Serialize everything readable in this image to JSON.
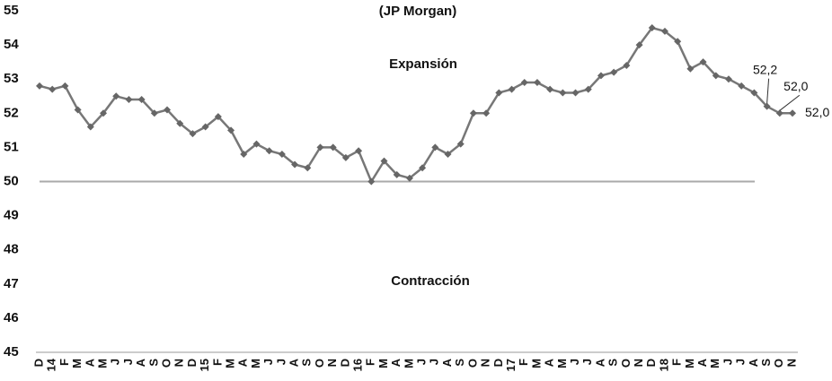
{
  "chart_data": {
    "type": "line",
    "title": "(JP Morgan)",
    "annotations": [
      "Expansión",
      "Contracción"
    ],
    "categories": [
      "D",
      "14",
      "F",
      "M",
      "A",
      "M",
      "J",
      "J",
      "A",
      "S",
      "O",
      "N",
      "D",
      "15",
      "F",
      "M",
      "A",
      "M",
      "J",
      "J",
      "A",
      "S",
      "O",
      "N",
      "D",
      "16",
      "F",
      "M",
      "A",
      "M",
      "J",
      "J",
      "A",
      "S",
      "O",
      "N",
      "D",
      "17",
      "F",
      "M",
      "A",
      "M",
      "J",
      "J",
      "A",
      "S",
      "O",
      "N",
      "D",
      "18",
      "F",
      "M",
      "A",
      "M",
      "J",
      "J",
      "A",
      "S",
      "O",
      "N"
    ],
    "values": [
      52.8,
      52.7,
      52.8,
      52.1,
      51.6,
      52.0,
      52.5,
      52.4,
      52.4,
      52.0,
      52.1,
      51.7,
      51.4,
      51.6,
      51.9,
      51.5,
      50.8,
      51.1,
      50.9,
      50.8,
      50.5,
      50.4,
      51.0,
      51.0,
      50.7,
      50.9,
      50.0,
      50.6,
      50.2,
      50.1,
      50.4,
      51.0,
      50.8,
      51.1,
      52.0,
      52.0,
      52.6,
      52.7,
      52.9,
      52.9,
      52.7,
      52.6,
      52.6,
      52.7,
      53.1,
      53.2,
      53.4,
      54.0,
      54.5,
      54.4,
      54.1,
      53.3,
      53.5,
      53.1,
      53.0,
      52.8,
      52.6,
      52.2,
      52.0,
      52.0
    ],
    "value_labels": [
      null,
      null,
      null,
      null,
      null,
      null,
      null,
      null,
      null,
      null,
      null,
      null,
      null,
      null,
      null,
      null,
      null,
      null,
      null,
      null,
      null,
      null,
      null,
      null,
      null,
      null,
      null,
      null,
      null,
      null,
      null,
      null,
      null,
      null,
      null,
      null,
      null,
      null,
      null,
      null,
      null,
      null,
      null,
      null,
      null,
      null,
      null,
      null,
      null,
      null,
      null,
      null,
      null,
      null,
      null,
      null,
      null,
      "52,2",
      "52,0",
      "52,0"
    ],
    "color": "#777777",
    "marker_color": "#666666",
    "reference_line": 50,
    "reference_color": "#aaaaaa",
    "ylim": [
      45,
      55
    ],
    "yticks": [
      45,
      46,
      47,
      48,
      49,
      50,
      51,
      52,
      53,
      54,
      55
    ],
    "grid": false
  }
}
